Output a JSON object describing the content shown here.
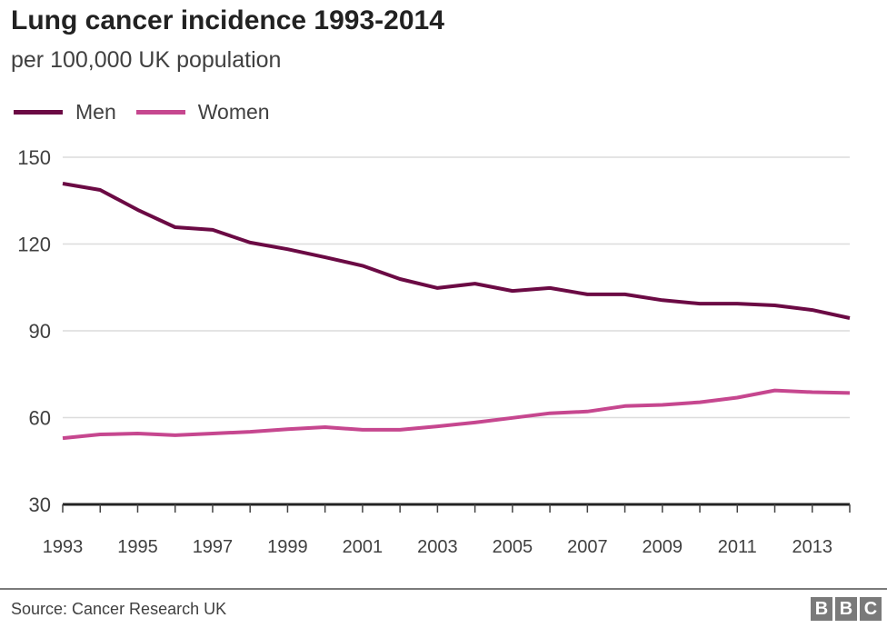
{
  "chart_data": {
    "type": "line",
    "title": "Lung cancer incidence 1993-2014",
    "subtitle": "per 100,000 UK population",
    "xlabel": "",
    "ylabel": "",
    "x": [
      1993,
      1994,
      1995,
      1996,
      1997,
      1998,
      1999,
      2000,
      2001,
      2002,
      2003,
      2004,
      2005,
      2006,
      2007,
      2008,
      2009,
      2010,
      2011,
      2012,
      2013,
      2014
    ],
    "xlim": [
      1993,
      2014
    ],
    "ylim": [
      30,
      150
    ],
    "yticks": [
      "30",
      "60",
      "90",
      "120",
      "150"
    ],
    "xticks": [
      "1993",
      "1995",
      "1997",
      "1999",
      "2001",
      "2003",
      "2005",
      "2007",
      "2009",
      "2011",
      "2013"
    ],
    "grid": true,
    "legend_placement": "top-left",
    "series": [
      {
        "name": "Men",
        "color": "#6b0a44",
        "values": [
          140.9,
          138.7,
          131.8,
          125.8,
          124.9,
          120.5,
          118.2,
          115.4,
          112.5,
          107.9,
          104.8,
          106.3,
          103.8,
          104.8,
          102.6,
          102.6,
          100.6,
          99.4,
          99.4,
          98.8,
          97.2,
          94.4
        ]
      },
      {
        "name": "Women",
        "color": "#c6478f",
        "values": [
          52.9,
          54.2,
          54.5,
          53.9,
          54.5,
          55.1,
          56.0,
          56.7,
          55.8,
          55.8,
          57.0,
          58.3,
          59.9,
          61.5,
          62.1,
          64.0,
          64.4,
          65.3,
          66.9,
          69.4,
          68.8,
          68.5
        ]
      }
    ]
  },
  "footer": {
    "source": "Source: Cancer Research UK",
    "logo": [
      "B",
      "B",
      "C"
    ]
  }
}
